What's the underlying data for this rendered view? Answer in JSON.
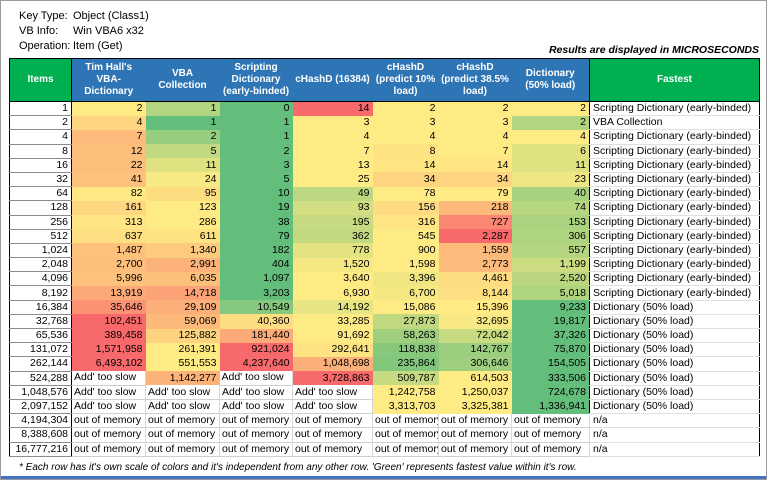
{
  "colors": {
    "header_blue": "#2E75B6",
    "header_green": "#00B050",
    "scale_green": "#63BE7B",
    "scale_yellow": "#FFEB84",
    "scale_red": "#F8696B",
    "bottom_bar_blue": "#4472C4"
  },
  "info_panel": {
    "rows": [
      {
        "label": "Key Type:",
        "value": "Object (Class1)"
      },
      {
        "label": "VB Info:",
        "value": "Win VBA6 x32"
      },
      {
        "label": "Operation:",
        "value": "Item (Get)"
      }
    ],
    "units_note": "Results are displayed in MICROSECONDS"
  },
  "table": {
    "columns": [
      {
        "key": "items",
        "label": "Items"
      },
      {
        "key": "tim-hall-vba-dictionary",
        "label": "Tim Hall's VBA-Dictionary"
      },
      {
        "key": "vba-collection",
        "label": "VBA Collection"
      },
      {
        "key": "scripting-dictionary-early-binded",
        "label": "Scripting Dictionary (early-binded)"
      },
      {
        "key": "chashd-16384",
        "label": "cHashD (16384)"
      },
      {
        "key": "chashd-predict-10-load",
        "label": "cHashD (predict 10% load)"
      },
      {
        "key": "chashd-predict-38-5-load",
        "label": "cHashD (predict 38.5% load)"
      },
      {
        "key": "dictionary-50-load",
        "label": "Dictionary (50% load)"
      },
      {
        "key": "fastest",
        "label": "Fastest"
      }
    ],
    "rows": [
      {
        "items": "1",
        "values": [
          "2",
          "1",
          "0",
          "14",
          "2",
          "2",
          "2"
        ],
        "fastest": "Scripting Dictionary (early-binded)"
      },
      {
        "items": "2",
        "values": [
          "4",
          "1",
          "1",
          "3",
          "3",
          "3",
          "2"
        ],
        "fastest": "VBA Collection"
      },
      {
        "items": "4",
        "values": [
          "7",
          "2",
          "1",
          "4",
          "4",
          "4",
          "4"
        ],
        "fastest": "Scripting Dictionary (early-binded)"
      },
      {
        "items": "8",
        "values": [
          "12",
          "5",
          "2",
          "7",
          "8",
          "7",
          "6"
        ],
        "fastest": "Scripting Dictionary (early-binded)"
      },
      {
        "items": "16",
        "values": [
          "22",
          "11",
          "3",
          "13",
          "14",
          "14",
          "11"
        ],
        "fastest": "Scripting Dictionary (early-binded)"
      },
      {
        "items": "32",
        "values": [
          "41",
          "24",
          "5",
          "25",
          "34",
          "34",
          "23"
        ],
        "fastest": "Scripting Dictionary (early-binded)"
      },
      {
        "items": "64",
        "values": [
          "82",
          "95",
          "10",
          "49",
          "78",
          "79",
          "40"
        ],
        "fastest": "Scripting Dictionary (early-binded)"
      },
      {
        "items": "128",
        "values": [
          "161",
          "123",
          "19",
          "93",
          "156",
          "218",
          "74"
        ],
        "fastest": "Scripting Dictionary (early-binded)"
      },
      {
        "items": "256",
        "values": [
          "313",
          "286",
          "38",
          "195",
          "316",
          "727",
          "153"
        ],
        "fastest": "Scripting Dictionary (early-binded)"
      },
      {
        "items": "512",
        "values": [
          "637",
          "611",
          "79",
          "362",
          "545",
          "2,287",
          "306"
        ],
        "fastest": "Scripting Dictionary (early-binded)"
      },
      {
        "items": "1,024",
        "values": [
          "1,487",
          "1,340",
          "182",
          "778",
          "900",
          "1,559",
          "557"
        ],
        "fastest": "Scripting Dictionary (early-binded)"
      },
      {
        "items": "2,048",
        "values": [
          "2,700",
          "2,991",
          "404",
          "1,520",
          "1,598",
          "2,773",
          "1,199"
        ],
        "fastest": "Scripting Dictionary (early-binded)"
      },
      {
        "items": "4,096",
        "values": [
          "5,996",
          "6,035",
          "1,097",
          "3,640",
          "3,396",
          "4,461",
          "2,520"
        ],
        "fastest": "Scripting Dictionary (early-binded)"
      },
      {
        "items": "8,192",
        "values": [
          "13,919",
          "14,718",
          "3,203",
          "6,930",
          "6,700",
          "8,144",
          "5,018"
        ],
        "fastest": "Scripting Dictionary (early-binded)"
      },
      {
        "items": "16,384",
        "values": [
          "35,646",
          "29,109",
          "10,549",
          "14,192",
          "15,086",
          "15,396",
          "9,233"
        ],
        "fastest": "Dictionary (50% load)"
      },
      {
        "items": "32,768",
        "values": [
          "102,451",
          "59,069",
          "40,360",
          "33,285",
          "27,873",
          "32,695",
          "19,817"
        ],
        "fastest": "Dictionary (50% load)"
      },
      {
        "items": "65,536",
        "values": [
          "389,458",
          "125,882",
          "181,440",
          "91,692",
          "58,263",
          "72,042",
          "37,326"
        ],
        "fastest": "Dictionary (50% load)"
      },
      {
        "items": "131,072",
        "values": [
          "1,571,958",
          "261,391",
          "921,024",
          "292,641",
          "118,838",
          "142,767",
          "75,870"
        ],
        "fastest": "Dictionary (50% load)"
      },
      {
        "items": "262,144",
        "values": [
          "6,493,102",
          "551,553",
          "4,237,640",
          "1,048,698",
          "235,864",
          "306,646",
          "154,505"
        ],
        "fastest": "Dictionary (50% load)"
      },
      {
        "items": "524,288",
        "values": [
          "Add' too slow",
          "1,142,277",
          "Add' too slow",
          "3,728,863",
          "509,787",
          "614,503",
          "333,506"
        ],
        "fastest": "Dictionary (50% load)"
      },
      {
        "items": "1,048,576",
        "values": [
          "Add' too slow",
          "Add' too slow",
          "Add' too slow",
          "Add' too slow",
          "1,242,758",
          "1,250,037",
          "724,678"
        ],
        "fastest": "Dictionary (50% load)"
      },
      {
        "items": "2,097,152",
        "values": [
          "Add' too slow",
          "Add' too slow",
          "Add' too slow",
          "Add' too slow",
          "3,313,703",
          "3,325,381",
          "1,336,941"
        ],
        "fastest": "Dictionary (50% load)"
      },
      {
        "items": "4,194,304",
        "values": [
          "out of memory",
          "out of memory",
          "out of memory",
          "out of memory",
          "out of memory",
          "out of memory",
          "out of memory"
        ],
        "fastest": "n/a"
      },
      {
        "items": "8,388,608",
        "values": [
          "out of memory",
          "out of memory",
          "out of memory",
          "out of memory",
          "out of memory",
          "out of memory",
          "out of memory"
        ],
        "fastest": "n/a"
      },
      {
        "items": "16,777,216",
        "values": [
          "out of memory",
          "out of memory",
          "out of memory",
          "out of memory",
          "out of memory",
          "out of memory",
          "out of memory"
        ],
        "fastest": "n/a"
      }
    ]
  },
  "footnote": "* Each row has it's own scale of colors and it's independent from any other row. 'Green' represents fastest value within it's row."
}
